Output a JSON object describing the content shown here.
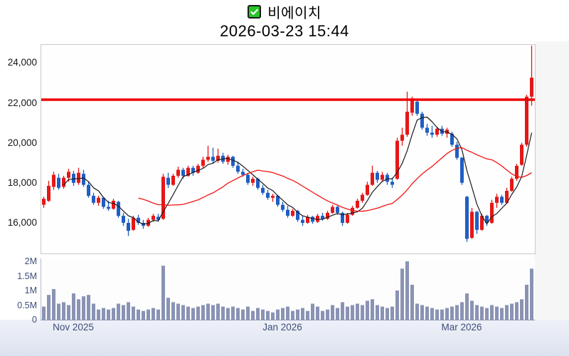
{
  "header": {
    "checkbox_icon": "green-checked-checkbox",
    "stock_name": "비에이치",
    "datetime": "2026-03-23 15:44"
  },
  "colors": {
    "up_candle": "#e61717",
    "down_candle": "#1f5ec4",
    "volume_bar": "#8a93b4",
    "horizontal_line": "#ee0404",
    "ma_short": "#1a1a1a",
    "ma_long": "#f21414",
    "axis_text_blue": "#3f4e79",
    "axis_text_black": "#161616"
  },
  "price_axis": {
    "ylim": [
      14520,
      24940
    ],
    "ticks": [
      {
        "label": "24,000",
        "value": 24000
      },
      {
        "label": "22,000",
        "value": 22000
      },
      {
        "label": "20,000",
        "value": 20000
      },
      {
        "label": "18,000",
        "value": 18000
      },
      {
        "label": "16,000",
        "value": 16000
      }
    ]
  },
  "volume_axis": {
    "ylim_millions": [
      0,
      2.1
    ],
    "ticks": [
      {
        "label": "2M",
        "value": 2
      },
      {
        "label": "1.5M",
        "value": 1.5
      },
      {
        "label": "1M",
        "value": 1
      },
      {
        "label": "0.5M",
        "value": 0.5
      },
      {
        "label": "0",
        "value": 0
      }
    ]
  },
  "x_axis": {
    "ticks": [
      {
        "label": "Nov 2025",
        "index": 6
      },
      {
        "label": "Jan 2026",
        "index": 48
      },
      {
        "label": "Mar 2026",
        "index": 84
      }
    ]
  },
  "chart_data": {
    "type": "candlestick+volume",
    "title": "비에이치",
    "subtitle": "2026-03-23 15:44",
    "horizontal_line": 22200,
    "moving_averages": [
      {
        "period": 5,
        "color": "#1a1a1a",
        "width": 1.2
      },
      {
        "period": 20,
        "color": "#f21414",
        "width": 1.3
      }
    ],
    "legend": "candles as [open, high, low, close, volume_millions]; red=up, blue=down",
    "candles": [
      [
        16950,
        17350,
        16800,
        17250,
        0.45
      ],
      [
        17150,
        18150,
        17100,
        17900,
        0.85
      ],
      [
        17850,
        18600,
        17700,
        18450,
        1.05
      ],
      [
        18300,
        18500,
        17700,
        17800,
        0.55
      ],
      [
        17850,
        18400,
        17750,
        18300,
        0.6
      ],
      [
        18300,
        18750,
        18100,
        18600,
        0.5
      ],
      [
        18500,
        18650,
        17900,
        18050,
        0.9
      ],
      [
        18050,
        18800,
        17950,
        18550,
        0.7
      ],
      [
        18500,
        18700,
        17850,
        17950,
        0.8
      ],
      [
        17950,
        18100,
        17300,
        17400,
        0.85
      ],
      [
        17400,
        17550,
        16950,
        17050,
        0.55
      ],
      [
        17050,
        17400,
        16900,
        17300,
        0.35
      ],
      [
        17300,
        17350,
        16750,
        16850,
        0.4
      ],
      [
        16850,
        17150,
        16650,
        16750,
        0.35
      ],
      [
        16750,
        17250,
        16700,
        17150,
        0.4
      ],
      [
        17100,
        17150,
        16300,
        16400,
        0.55
      ],
      [
        16400,
        16550,
        15900,
        16050,
        0.5
      ],
      [
        16050,
        16250,
        15400,
        15650,
        0.6
      ],
      [
        15700,
        16400,
        15650,
        16300,
        0.45
      ],
      [
        16300,
        16450,
        15950,
        16050,
        0.35
      ],
      [
        16050,
        16200,
        15750,
        15900,
        0.3
      ],
      [
        15900,
        16300,
        15850,
        16200,
        0.35
      ],
      [
        16200,
        16500,
        16100,
        16400,
        0.4
      ],
      [
        16350,
        16500,
        16100,
        16200,
        0.35
      ],
      [
        16250,
        18500,
        16200,
        18350,
        1.85
      ],
      [
        18300,
        18550,
        17800,
        17950,
        0.75
      ],
      [
        17950,
        18500,
        17900,
        18400,
        0.6
      ],
      [
        18400,
        18850,
        18300,
        18700,
        0.55
      ],
      [
        18700,
        18800,
        18250,
        18400,
        0.5
      ],
      [
        18400,
        18900,
        18350,
        18800,
        0.45
      ],
      [
        18800,
        18900,
        18400,
        18550,
        0.4
      ],
      [
        18550,
        19000,
        18500,
        18900,
        0.45
      ],
      [
        18900,
        19350,
        18800,
        19200,
        0.5
      ],
      [
        19200,
        19900,
        19100,
        19350,
        0.55
      ],
      [
        19350,
        19800,
        19000,
        19150,
        0.5
      ],
      [
        19150,
        19750,
        19050,
        19400,
        0.55
      ],
      [
        19400,
        19550,
        19000,
        19100,
        0.45
      ],
      [
        19100,
        19450,
        18950,
        19350,
        0.4
      ],
      [
        19350,
        19400,
        18800,
        18900,
        0.45
      ],
      [
        18900,
        19100,
        18500,
        18600,
        0.4
      ],
      [
        18600,
        18750,
        18350,
        18450,
        0.35
      ],
      [
        18450,
        18550,
        17950,
        18050,
        0.45
      ],
      [
        18050,
        18350,
        17900,
        18250,
        0.3
      ],
      [
        18250,
        18300,
        17700,
        17800,
        0.4
      ],
      [
        17800,
        17950,
        17450,
        17550,
        0.35
      ],
      [
        17550,
        17700,
        17200,
        17300,
        0.3
      ],
      [
        17300,
        17500,
        17100,
        17400,
        0.25
      ],
      [
        17400,
        17450,
        16850,
        16950,
        0.35
      ],
      [
        16950,
        17100,
        16600,
        16700,
        0.4
      ],
      [
        16700,
        16900,
        16300,
        16400,
        0.45
      ],
      [
        16400,
        16750,
        16350,
        16650,
        0.3
      ],
      [
        16650,
        16700,
        16100,
        16200,
        0.35
      ],
      [
        16200,
        16400,
        15900,
        16050,
        0.4
      ],
      [
        16050,
        16450,
        16000,
        16350,
        0.3
      ],
      [
        16350,
        16400,
        16000,
        16100,
        0.55
      ],
      [
        16100,
        16500,
        16050,
        16400,
        0.45
      ],
      [
        16400,
        16550,
        16150,
        16250,
        0.3
      ],
      [
        16250,
        16650,
        16200,
        16550,
        0.35
      ],
      [
        16550,
        16950,
        16500,
        16850,
        0.5
      ],
      [
        16850,
        16900,
        16450,
        16550,
        0.4
      ],
      [
        16550,
        16600,
        15900,
        16050,
        0.6
      ],
      [
        16050,
        16550,
        16000,
        16450,
        0.45
      ],
      [
        16450,
        16900,
        16400,
        16800,
        0.5
      ],
      [
        16800,
        17250,
        16750,
        17150,
        0.55
      ],
      [
        17150,
        17550,
        17050,
        17450,
        0.5
      ],
      [
        17450,
        18100,
        17400,
        17950,
        0.65
      ],
      [
        17950,
        18900,
        17900,
        18550,
        0.7
      ],
      [
        18550,
        18650,
        18050,
        18200,
        0.5
      ],
      [
        18200,
        18600,
        18100,
        18450,
        0.45
      ],
      [
        18450,
        18550,
        17950,
        18100,
        0.4
      ],
      [
        18100,
        18300,
        17800,
        17950,
        0.45
      ],
      [
        18250,
        20300,
        18200,
        20150,
        1.0
      ],
      [
        20150,
        20800,
        19900,
        20450,
        1.75
      ],
      [
        20450,
        22600,
        20350,
        21600,
        2.0
      ],
      [
        21550,
        22350,
        21400,
        22200,
        1.2
      ],
      [
        22100,
        22150,
        21400,
        21500,
        0.55
      ],
      [
        21500,
        21600,
        20700,
        20800,
        0.5
      ],
      [
        20800,
        21000,
        20400,
        20550,
        0.45
      ],
      [
        20550,
        20900,
        20300,
        20450,
        0.4
      ],
      [
        20450,
        20850,
        20350,
        20750,
        0.35
      ],
      [
        20750,
        20900,
        20400,
        20500,
        0.35
      ],
      [
        20500,
        20800,
        20300,
        20700,
        0.4
      ],
      [
        20500,
        20600,
        19850,
        19950,
        0.45
      ],
      [
        19950,
        20100,
        19200,
        19300,
        0.5
      ],
      [
        19300,
        19350,
        17950,
        18050,
        0.6
      ],
      [
        17350,
        17400,
        15100,
        15250,
        0.9
      ],
      [
        15300,
        16800,
        15250,
        16600,
        0.65
      ],
      [
        16600,
        16650,
        15500,
        15700,
        0.5
      ],
      [
        15700,
        16500,
        15650,
        16400,
        0.45
      ],
      [
        16400,
        16450,
        15900,
        16050,
        0.4
      ],
      [
        16050,
        17200,
        16000,
        17050,
        0.5
      ],
      [
        17050,
        17500,
        16800,
        17350,
        0.45
      ],
      [
        17350,
        17450,
        16950,
        17050,
        0.4
      ],
      [
        17050,
        17800,
        17000,
        17650,
        0.5
      ],
      [
        17650,
        18350,
        17600,
        18250,
        0.55
      ],
      [
        18250,
        19000,
        18150,
        18900,
        0.6
      ],
      [
        18950,
        20050,
        18900,
        19950,
        0.7
      ],
      [
        19950,
        22450,
        19850,
        22350,
        1.2
      ],
      [
        22350,
        24900,
        21900,
        23300,
        1.75
      ]
    ]
  }
}
